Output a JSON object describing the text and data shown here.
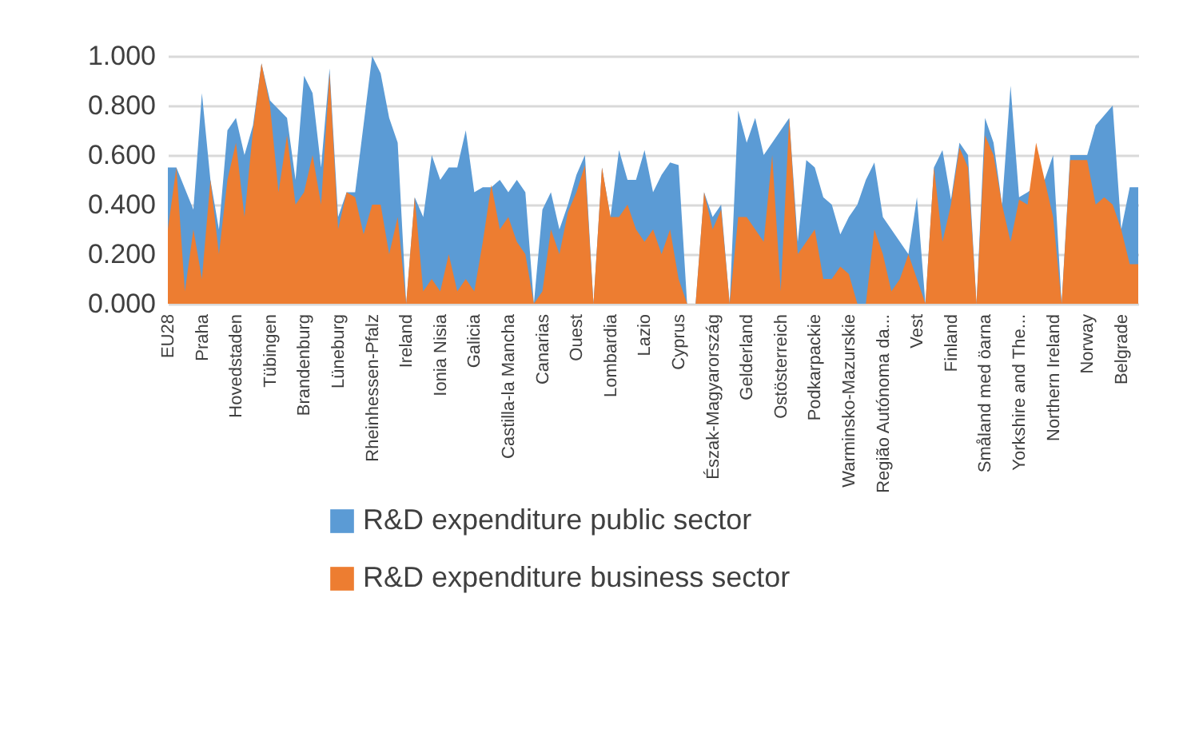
{
  "chart_data": {
    "type": "area",
    "categories": [
      "EU28",
      null,
      null,
      null,
      "Praha",
      null,
      null,
      null,
      "Hovedstaden",
      null,
      null,
      null,
      "Tübingen",
      null,
      null,
      null,
      "Brandenburg",
      null,
      null,
      null,
      "Lüneburg",
      null,
      null,
      null,
      "Rheinhessen-Pfalz",
      null,
      null,
      null,
      "Ireland",
      null,
      null,
      null,
      "Ionia Nisia",
      null,
      null,
      null,
      "Galicia",
      null,
      null,
      null,
      "Castilla-la Mancha",
      null,
      null,
      null,
      "Canarias",
      null,
      null,
      null,
      "Ouest",
      null,
      null,
      null,
      "Lombardia",
      null,
      null,
      null,
      "Lazio",
      null,
      null,
      null,
      "Cyprus",
      null,
      null,
      null,
      "Észak-Magyarország",
      null,
      null,
      null,
      "Gelderland",
      null,
      null,
      null,
      "Ostösterreich",
      null,
      null,
      null,
      "Podkarpackie",
      null,
      null,
      null,
      "Warminsko-Mazurskie",
      null,
      null,
      null,
      "Região Autónoma da...",
      null,
      null,
      null,
      "Vest",
      null,
      null,
      null,
      "Finland",
      null,
      null,
      null,
      "Småland med öarna",
      null,
      null,
      null,
      "Yorkshire and The...",
      null,
      null,
      null,
      "Northern Ireland",
      null,
      null,
      null,
      "Norway",
      null,
      null,
      null,
      "Belgrade",
      null,
      null
    ],
    "series": [
      {
        "name": "R&D expenditure public sector",
        "color": "#5b9bd5",
        "values": [
          0.55,
          0.55,
          null,
          0.38,
          0.85,
          0.5,
          0.3,
          0.7,
          0.75,
          0.6,
          0.72,
          0.97,
          0.82,
          null,
          0.75,
          0.5,
          0.92,
          0.85,
          0.55,
          0.95,
          0.35,
          0.45,
          0.45,
          null,
          1.0,
          0.93,
          0.75,
          0.65,
          0,
          0.43,
          0.35,
          0.6,
          0.5,
          0.55,
          0.55,
          0.7,
          0.45,
          0.47,
          0.47,
          0.5,
          0.45,
          0.5,
          0.45,
          0,
          0.38,
          0.45,
          0.3,
          0.4,
          0.52,
          0.6,
          0,
          0.55,
          0.35,
          0.62,
          0.5,
          0.5,
          0.62,
          0.45,
          0.52,
          0.57,
          0.56,
          0,
          0,
          0.45,
          0.35,
          0.4,
          0,
          0.78,
          0.65,
          0.75,
          0.6,
          0.65,
          null,
          0.75,
          0.25,
          0.58,
          0.55,
          0.43,
          0.4,
          0.28,
          0.35,
          0.4,
          0.5,
          0.57,
          0.35,
          null,
          0.25,
          0.2,
          0.43,
          0,
          0.55,
          0.62,
          0.42,
          0.65,
          0.6,
          0,
          0.75,
          0.65,
          0.4,
          0.88,
          0.43,
          0.45,
          null,
          0.5,
          0.6,
          0,
          0.6,
          0.6,
          0.6,
          0.72,
          null,
          0.8,
          0.3,
          0.47,
          0.47
        ]
      },
      {
        "name": "R&D expenditure business sector",
        "color": "#ed7d31",
        "values": [
          0.3,
          0.55,
          0.05,
          0.3,
          0.1,
          0.5,
          0.2,
          0.5,
          0.65,
          0.35,
          0.7,
          0.97,
          0.8,
          0.45,
          0.68,
          0.4,
          0.45,
          0.6,
          0.4,
          0.93,
          0.3,
          0.45,
          0.43,
          0.28,
          0.4,
          0.4,
          0.2,
          0.35,
          0,
          0.43,
          0.05,
          0.1,
          0.05,
          0.2,
          0.05,
          0.1,
          0.05,
          0.25,
          0.48,
          0.3,
          0.35,
          0.25,
          0.2,
          0,
          0.05,
          0.3,
          0.2,
          0.37,
          0.45,
          0.56,
          0,
          0.55,
          0.35,
          0.35,
          0.4,
          0.3,
          0.25,
          0.3,
          0.2,
          0.3,
          0.1,
          0,
          0,
          0.45,
          0.3,
          0.38,
          0,
          0.35,
          0.35,
          0.3,
          0.25,
          0.6,
          0.05,
          0.75,
          0.2,
          0.25,
          0.3,
          0.1,
          0.1,
          0.15,
          0.12,
          0,
          0,
          0.3,
          0.2,
          0.05,
          0.1,
          0.2,
          0.1,
          0,
          0.55,
          0.25,
          0.4,
          0.63,
          0.55,
          0,
          0.68,
          0.6,
          0.4,
          0.25,
          0.42,
          0.4,
          0.65,
          0.5,
          0.35,
          0,
          0.58,
          0.58,
          0.58,
          0.4,
          0.43,
          0.4,
          0.3,
          0.16,
          0.16
        ]
      }
    ],
    "ylim": [
      0,
      1
    ],
    "yticks": [
      {
        "value": 0,
        "label": "0.000"
      },
      {
        "value": 0.2,
        "label": "0.200"
      },
      {
        "value": 0.4,
        "label": "0.400"
      },
      {
        "value": 0.6,
        "label": "0.600"
      },
      {
        "value": 0.8,
        "label": "0.800"
      },
      {
        "value": 1,
        "label": "1.000"
      }
    ],
    "grid": "y",
    "legend": "bottom"
  }
}
